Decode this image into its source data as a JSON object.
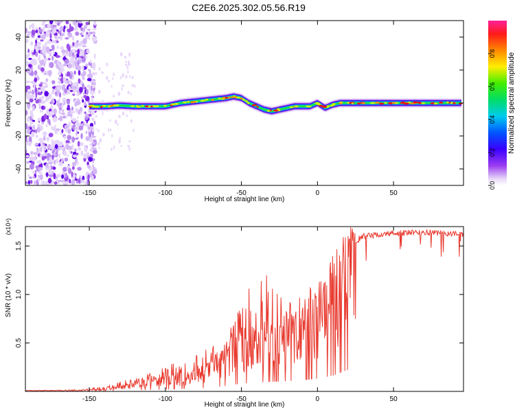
{
  "title": "C2E6.2025.302.05.56.R19",
  "chart_data": [
    {
      "type": "heatmap",
      "xlabel": "Height of straight line (km)",
      "ylabel": "Frequency (Hz)",
      "xlim": [
        -192,
        96
      ],
      "ylim": [
        -50,
        50
      ],
      "xticks": [
        -150,
        -100,
        -50,
        0,
        50
      ],
      "yticks": [
        -40,
        -20,
        0,
        20,
        40
      ],
      "grid": false,
      "colorbar": {
        "label": "Normalized spectral amplitude",
        "range": [
          0,
          1
        ],
        "ticks": [
          "0.0",
          "0.2",
          "0.4",
          "0.6",
          "0.8"
        ],
        "colormap": "rainbow (white/lavender → purple → blue → cyan → green → yellow → orange → red → magenta)"
      },
      "ridge": {
        "description": "Doppler frequency ridge versus height",
        "x": [
          -150,
          -140,
          -130,
          -120,
          -110,
          -100,
          -90,
          -80,
          -70,
          -60,
          -55,
          -50,
          -45,
          -40,
          -35,
          -30,
          -25,
          -20,
          -15,
          -10,
          -5,
          0,
          5,
          10,
          15,
          20,
          30,
          50,
          70,
          95
        ],
        "y": [
          -2,
          -2,
          -1.5,
          -2,
          -2,
          -2,
          0,
          1,
          2,
          3,
          4,
          3,
          0,
          -2,
          -4,
          -5,
          -4,
          -3,
          -2,
          -2,
          -2,
          0,
          -3,
          -1,
          0,
          0,
          0,
          0,
          0,
          0
        ],
        "note": "noisy scattered power at x < -150; ridge amplitude increases toward positive heights"
      }
    },
    {
      "type": "line",
      "xlabel": "Height of straight line (km)",
      "ylabel": "SNR (10 * v/v)",
      "y_multiplier": "(x10⁴)",
      "xlim": [
        -192,
        96
      ],
      "ylim": [
        0,
        1.7
      ],
      "xticks": [
        -150,
        -100,
        -50,
        0,
        50
      ],
      "yticks": [
        "0.5",
        "1.0",
        "1.5"
      ],
      "grid": false,
      "series": [
        {
          "color": "#e8392e",
          "envelope_x": [
            -192,
            -160,
            -140,
            -120,
            -110,
            -100,
            -90,
            -80,
            -70,
            -60,
            -50,
            -40,
            -30,
            -20,
            -10,
            0,
            10,
            15,
            20,
            30,
            50,
            70,
            95
          ],
          "envelope_y": [
            0.01,
            0.01,
            0.03,
            0.08,
            0.12,
            0.15,
            0.17,
            0.2,
            0.28,
            0.4,
            0.55,
            0.62,
            0.68,
            0.72,
            0.78,
            0.9,
            1.1,
            1.3,
            1.5,
            1.6,
            1.63,
            1.64,
            1.62
          ],
          "spike_max": [
            0.01,
            0.02,
            0.05,
            0.15,
            0.2,
            0.3,
            0.3,
            0.38,
            0.5,
            0.6,
            0.9,
            1.27,
            1.2,
            1.0,
            1.05,
            1.18,
            1.45,
            1.55,
            1.68,
            1.68,
            1.68,
            1.68,
            1.67
          ]
        }
      ]
    }
  ]
}
